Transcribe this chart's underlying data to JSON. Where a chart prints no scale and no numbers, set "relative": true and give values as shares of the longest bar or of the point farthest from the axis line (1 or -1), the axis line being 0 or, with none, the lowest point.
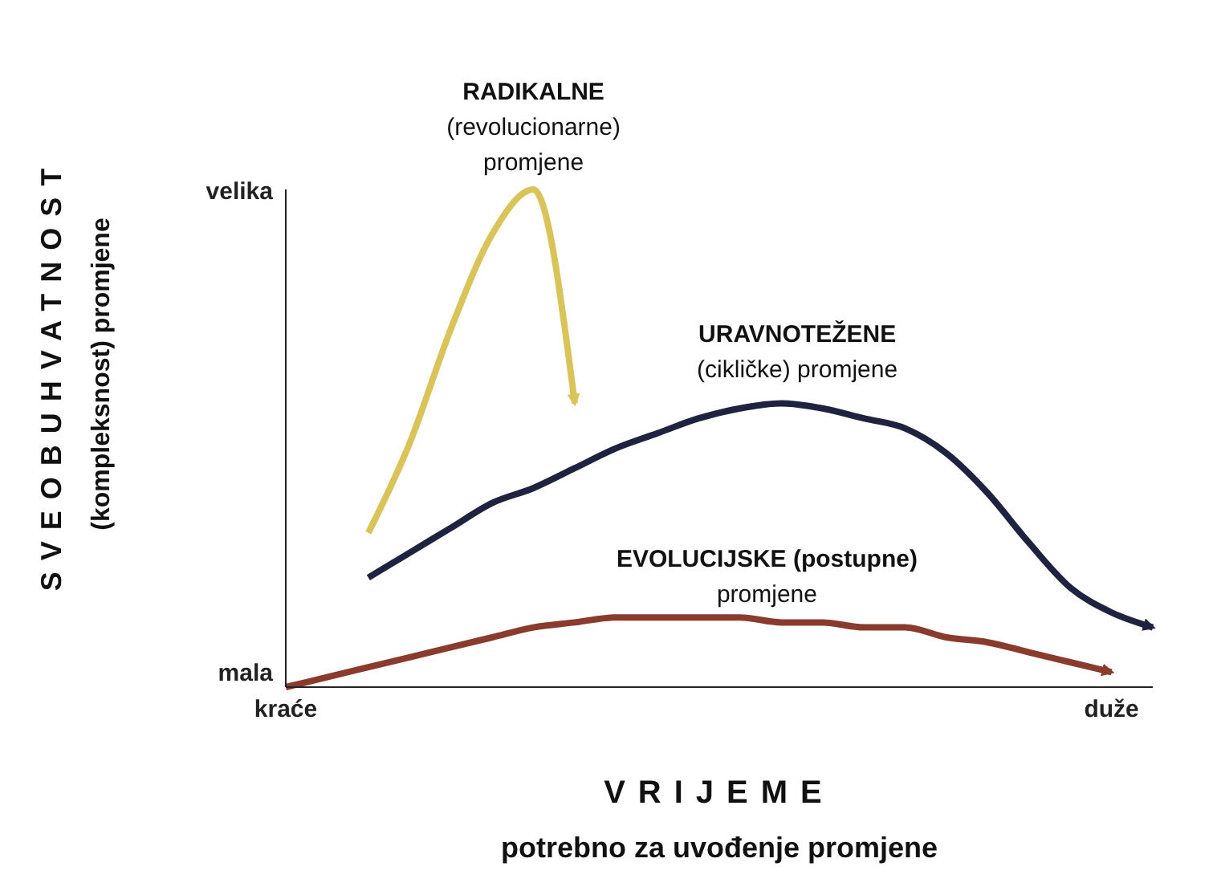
{
  "chart_data": {
    "type": "line",
    "relative": true,
    "xlabel": "VRIJEME\npotrebno za uvođenje promjene",
    "ylabel": "SVEOBUHVATNOST\n(kompleksnost) promjene",
    "categories": [
      "kraće",
      null,
      null,
      null,
      null,
      null,
      null,
      null,
      null,
      null,
      null,
      null,
      null,
      null,
      null,
      null,
      null,
      null,
      null,
      null,
      "duže",
      null
    ],
    "annotations": [
      "velika",
      "mala"
    ],
    "series": [
      {
        "name": "RADIKALNE\n(revolucionarne)\npromjene",
        "color": "#d9c45a",
        "values": [
          null,
          null,
          0.31,
          0.49,
          0.72,
          0.91,
          1,
          0.57,
          null,
          null,
          null,
          null,
          null,
          null,
          null,
          null,
          null,
          null,
          null,
          null,
          null,
          null
        ]
      },
      {
        "name": "URAVNOTEŽENE\n(cikličke) promjene",
        "color": "#1f2340",
        "values": [
          null,
          null,
          0.22,
          0.27,
          0.32,
          0.37,
          0.4,
          0.44,
          0.48,
          0.51,
          0.54,
          0.56,
          0.57,
          0.56,
          0.54,
          0.52,
          0.47,
          0.39,
          0.29,
          0.2,
          0.15,
          0.12
        ]
      },
      {
        "name": "EVOLUCIJSKE (postupne)\npromjene",
        "color": "#8b3a2e",
        "values": [
          0,
          0.02,
          0.04,
          0.06,
          0.08,
          0.1,
          0.12,
          0.13,
          0.14,
          0.14,
          0.14,
          0.14,
          0.13,
          0.13,
          0.12,
          0.12,
          0.1,
          0.09,
          0.07,
          0.05,
          0.03,
          null
        ]
      }
    ]
  }
}
